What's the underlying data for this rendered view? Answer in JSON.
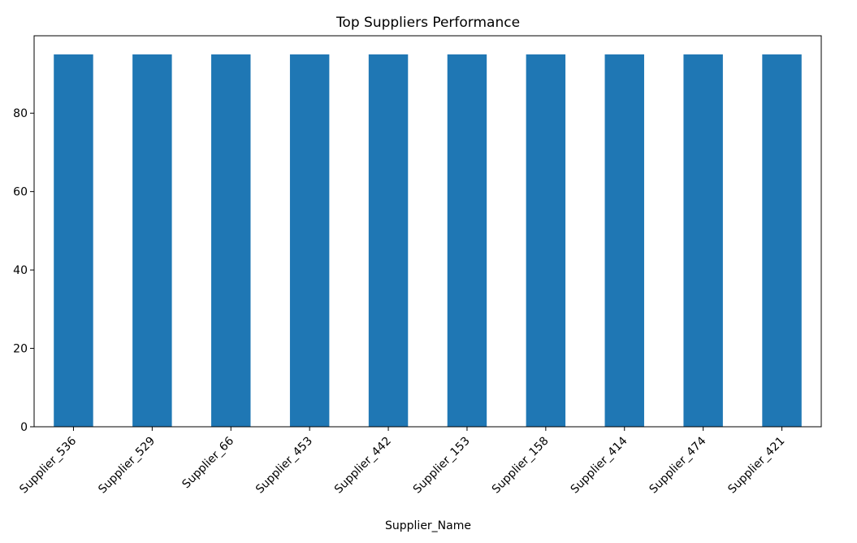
{
  "chart_data": {
    "type": "bar",
    "title": "Top Suppliers Performance",
    "xlabel": "Supplier_Name",
    "ylabel": "",
    "categories": [
      "Supplier_536",
      "Supplier_529",
      "Supplier_66",
      "Supplier_453",
      "Supplier_442",
      "Supplier_153",
      "Supplier_158",
      "Supplier_414",
      "Supplier_474",
      "Supplier_421"
    ],
    "values": [
      95,
      95,
      95,
      95,
      95,
      95,
      95,
      95,
      95,
      95
    ],
    "ylim": [
      0,
      99.75
    ],
    "yticks": [
      0,
      20,
      40,
      60,
      80
    ],
    "bar_color": "#1f77b4",
    "grid": false,
    "legend": "none"
  }
}
